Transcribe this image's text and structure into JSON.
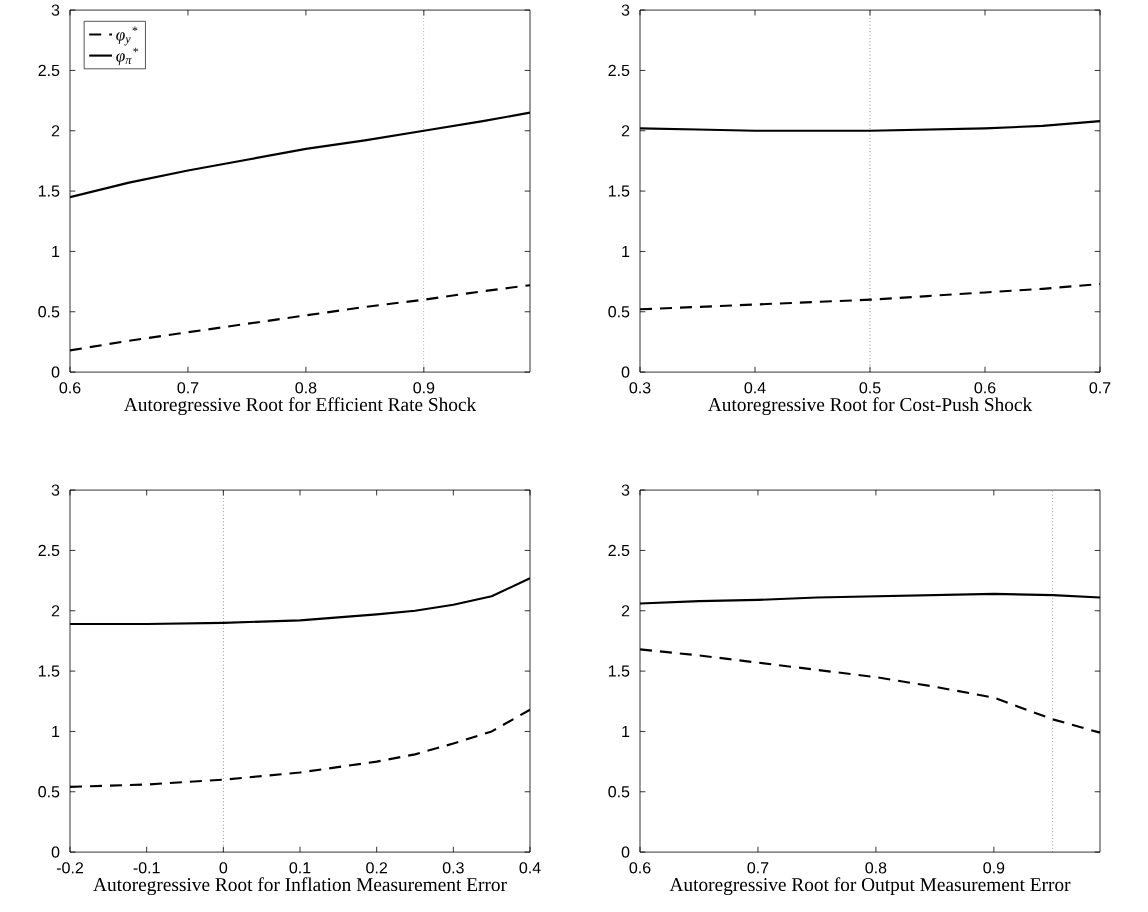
{
  "chart_data": [
    {
      "type": "line",
      "xlabel": "Autoregressive Root for Efficient Rate Shock",
      "x": [
        0.6,
        0.65,
        0.7,
        0.75,
        0.8,
        0.85,
        0.9,
        0.95,
        0.99
      ],
      "xlim": [
        0.6,
        0.99
      ],
      "xticks": [
        0.6,
        0.7,
        0.8,
        0.9
      ],
      "ylim": [
        0,
        3
      ],
      "yticks": [
        0,
        0.5,
        1,
        1.5,
        2,
        2.5,
        3
      ],
      "legend": "top left",
      "series": [
        {
          "name": "φ$_{y}$$^{*}$",
          "color": "#000000",
          "line_style": "dashed",
          "values": [
            0.18,
            0.26,
            0.33,
            0.4,
            0.47,
            0.54,
            0.6,
            0.67,
            0.72
          ]
        },
        {
          "name": "φ$_{π}$$^{*}$",
          "color": "#000000",
          "line_style": "solid",
          "values": [
            1.45,
            1.57,
            1.67,
            1.76,
            1.85,
            1.92,
            2.0,
            2.08,
            2.15
          ]
        }
      ],
      "ref_lines": [
        {
          "axis": "x",
          "value": 0.9,
          "line_style": "dotted",
          "color": "#000000"
        }
      ]
    },
    {
      "type": "line",
      "xlabel": "Autoregressive Root for Cost-Push Shock",
      "x": [
        0.3,
        0.35,
        0.4,
        0.45,
        0.5,
        0.55,
        0.6,
        0.65,
        0.7
      ],
      "xlim": [
        0.3,
        0.7
      ],
      "xticks": [
        0.3,
        0.4,
        0.5,
        0.6,
        0.7
      ],
      "ylim": [
        0,
        3
      ],
      "yticks": [
        0,
        0.5,
        1,
        1.5,
        2,
        2.5,
        3
      ],
      "series": [
        {
          "color": "#000000",
          "line_style": "dashed",
          "values": [
            0.52,
            0.54,
            0.56,
            0.58,
            0.6,
            0.63,
            0.66,
            0.69,
            0.73
          ]
        },
        {
          "color": "#000000",
          "line_style": "solid",
          "values": [
            2.02,
            2.01,
            2.0,
            2.0,
            2.0,
            2.01,
            2.02,
            2.04,
            2.08
          ]
        }
      ],
      "ref_lines": [
        {
          "axis": "x",
          "value": 0.5,
          "line_style": "dotted",
          "color": "#000000"
        }
      ]
    },
    {
      "type": "line",
      "xlabel": "Autoregressive Root for Inflation Measurement Error",
      "x": [
        -0.2,
        -0.1,
        0,
        0.1,
        0.2,
        0.25,
        0.3,
        0.35,
        0.4
      ],
      "xlim": [
        -0.2,
        0.4
      ],
      "xticks": [
        -0.2,
        -0.1,
        0,
        0.1,
        0.2,
        0.3,
        0.4
      ],
      "ylim": [
        0,
        3
      ],
      "yticks": [
        0,
        0.5,
        1,
        1.5,
        2,
        2.5,
        3
      ],
      "series": [
        {
          "color": "#000000",
          "line_style": "dashed",
          "values": [
            0.54,
            0.56,
            0.6,
            0.66,
            0.75,
            0.81,
            0.9,
            1.0,
            1.18
          ]
        },
        {
          "color": "#000000",
          "line_style": "solid",
          "values": [
            1.89,
            1.89,
            1.9,
            1.92,
            1.97,
            2.0,
            2.05,
            2.12,
            2.27
          ]
        }
      ],
      "ref_lines": [
        {
          "axis": "x",
          "value": 0,
          "line_style": "dotted",
          "color": "#000000"
        }
      ]
    },
    {
      "type": "line",
      "xlabel": "Autoregressive Root for Output Measurement Error",
      "x": [
        0.6,
        0.65,
        0.7,
        0.75,
        0.8,
        0.85,
        0.9,
        0.95,
        0.99
      ],
      "xlim": [
        0.6,
        0.99
      ],
      "xticks": [
        0.6,
        0.7,
        0.8,
        0.9
      ],
      "ylim": [
        0,
        3
      ],
      "yticks": [
        0,
        0.5,
        1,
        1.5,
        2,
        2.5,
        3
      ],
      "series": [
        {
          "color": "#000000",
          "line_style": "dashed",
          "values": [
            1.68,
            1.63,
            1.57,
            1.51,
            1.45,
            1.37,
            1.28,
            1.1,
            0.99
          ]
        },
        {
          "color": "#000000",
          "line_style": "solid",
          "values": [
            2.06,
            2.08,
            2.09,
            2.11,
            2.12,
            2.13,
            2.14,
            2.13,
            2.11
          ]
        }
      ],
      "ref_lines": [
        {
          "axis": "x",
          "value": 0.95,
          "line_style": "dotted",
          "color": "#000000"
        }
      ]
    }
  ]
}
